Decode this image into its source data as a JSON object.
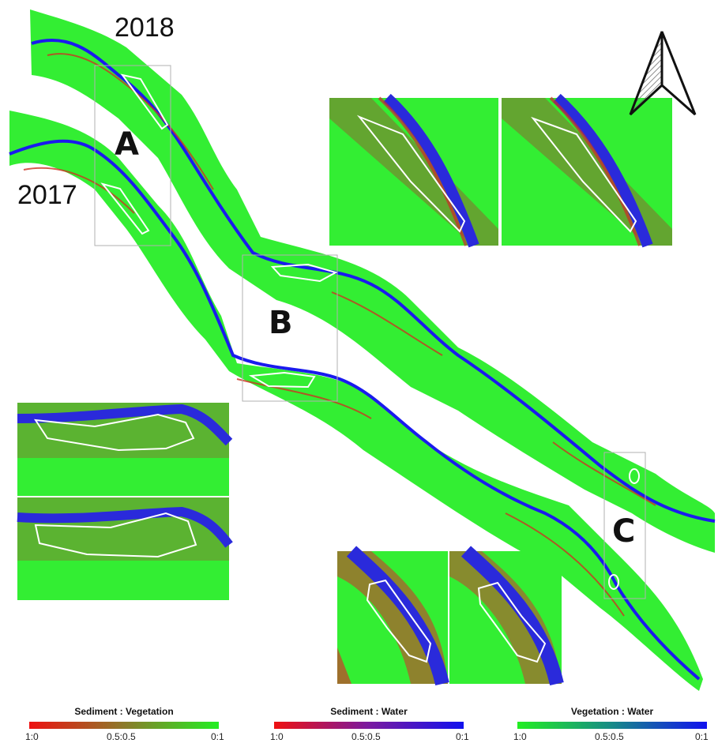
{
  "labels": {
    "year_2018": "2018",
    "year_2017": "2017",
    "site_a": "A",
    "site_b": "B",
    "site_c": "C"
  },
  "legends": [
    {
      "title": "Sediment : Vegetation",
      "ticks": [
        "1:0",
        "0.5:0.5",
        "0:1"
      ],
      "colors": [
        "#ee1111",
        "#8c7a2a",
        "#22ee22"
      ]
    },
    {
      "title": "Sediment : Water",
      "ticks": [
        "1:0",
        "0.5:0.5",
        "0:1"
      ],
      "colors": [
        "#ee1111",
        "#7a1aa0",
        "#1111ee"
      ]
    },
    {
      "title": "Vegetation : Water",
      "ticks": [
        "1:0",
        "0.5:0.5",
        "0:1"
      ],
      "colors": [
        "#22ee22",
        "#178a88",
        "#1111ee"
      ]
    }
  ],
  "colors": {
    "vegetation": "#33ee33",
    "water": "#1a1aee",
    "sediment": "#dd2222",
    "outline": "#ffffff",
    "frame": "#b0b0b0"
  },
  "icons": {
    "north_arrow": "north-arrow-icon"
  }
}
